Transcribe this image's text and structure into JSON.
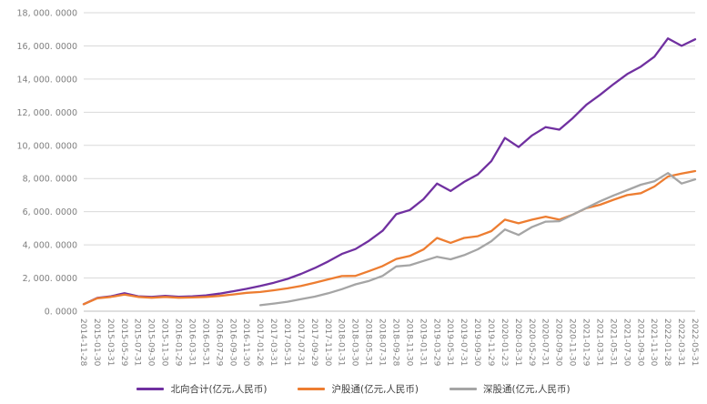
{
  "chart_data": {
    "type": "line",
    "title": "",
    "xlabel": "",
    "ylabel": "",
    "ylim": [
      0,
      18000
    ],
    "grid": true,
    "legend_position": "bottom",
    "colors": {
      "gridline": "#d9d9d9",
      "axis_line": "#bfbfbf",
      "tick_text": "#7f7f7f"
    },
    "y_ticks": [
      {
        "value": 0,
        "label": "0. 0000"
      },
      {
        "value": 2000,
        "label": "2, 000. 0000"
      },
      {
        "value": 4000,
        "label": "4, 000. 0000"
      },
      {
        "value": 6000,
        "label": "6, 000. 0000"
      },
      {
        "value": 8000,
        "label": "8, 000. 0000"
      },
      {
        "value": 10000,
        "label": "10, 000. 0000"
      },
      {
        "value": 12000,
        "label": "12, 000. 0000"
      },
      {
        "value": 14000,
        "label": "14, 000. 0000"
      },
      {
        "value": 16000,
        "label": "16, 000. 0000"
      },
      {
        "value": 18000,
        "label": "18, 000. 0000"
      }
    ],
    "categories": [
      "2014-11-28",
      "2015-01-30",
      "2015-03-31",
      "2015-05-29",
      "2015-07-31",
      "2015-09-30",
      "2015-11-30",
      "2016-01-29",
      "2016-03-31",
      "2016-05-31",
      "2016-07-29",
      "2016-09-30",
      "2016-11-30",
      "2017-01-26",
      "2017-03-31",
      "2017-05-31",
      "2017-07-31",
      "2017-09-29",
      "2017-11-30",
      "2018-01-31",
      "2018-03-30",
      "2018-05-31",
      "2018-07-31",
      "2018-09-28",
      "2018-11-30",
      "2019-01-31",
      "2019-03-29",
      "2019-05-31",
      "2019-07-31",
      "2019-09-30",
      "2019-11-29",
      "2020-01-23",
      "2020-03-31",
      "2020-05-29",
      "2020-07-31",
      "2020-09-30",
      "2020-11-30",
      "2021-01-29",
      "2021-03-31",
      "2021-05-31",
      "2021-07-30",
      "2021-09-30",
      "2021-11-30",
      "2022-01-28",
      "2022-03-31",
      "2022-05-31"
    ],
    "series": [
      {
        "id": "beixiang-total",
        "name": "北向合计(亿元,人民币)",
        "color": "#7030a0",
        "values": [
          420,
          800,
          900,
          1080,
          900,
          860,
          920,
          870,
          900,
          950,
          1060,
          1200,
          1350,
          1520,
          1720,
          1950,
          2250,
          2600,
          3000,
          3450,
          3750,
          4250,
          4850,
          5850,
          6100,
          6750,
          7700,
          7250,
          7800,
          8250,
          9050,
          10450,
          9900,
          10600,
          11100,
          10950,
          11650,
          12450,
          13050,
          13700,
          14300,
          14750,
          15350,
          16450,
          16000,
          16400
        ]
      },
      {
        "id": "hugutong",
        "name": "沪股通(亿元,人民币)",
        "color": "#ed7d31",
        "values": [
          420,
          780,
          860,
          1000,
          860,
          810,
          860,
          810,
          830,
          860,
          920,
          1010,
          1110,
          1160,
          1260,
          1380,
          1520,
          1720,
          1920,
          2120,
          2130,
          2420,
          2720,
          3150,
          3330,
          3720,
          4420,
          4120,
          4420,
          4520,
          4830,
          5520,
          5300,
          5520,
          5700,
          5520,
          5830,
          6220,
          6420,
          6720,
          7000,
          7120,
          7520,
          8120,
          8300,
          8450
        ]
      },
      {
        "id": "shengutong",
        "name": "深股通(亿元,人民币)",
        "color": "#a5a5a5",
        "values": [
          null,
          null,
          null,
          null,
          null,
          null,
          null,
          null,
          null,
          null,
          null,
          null,
          null,
          360,
          460,
          570,
          730,
          880,
          1080,
          1330,
          1620,
          1830,
          2130,
          2700,
          2770,
          3030,
          3280,
          3130,
          3380,
          3730,
          4220,
          4930,
          4600,
          5080,
          5400,
          5430,
          5820,
          6230,
          6630,
          6980,
          7300,
          7630,
          7830,
          8330,
          7700,
          7950
        ]
      }
    ]
  }
}
